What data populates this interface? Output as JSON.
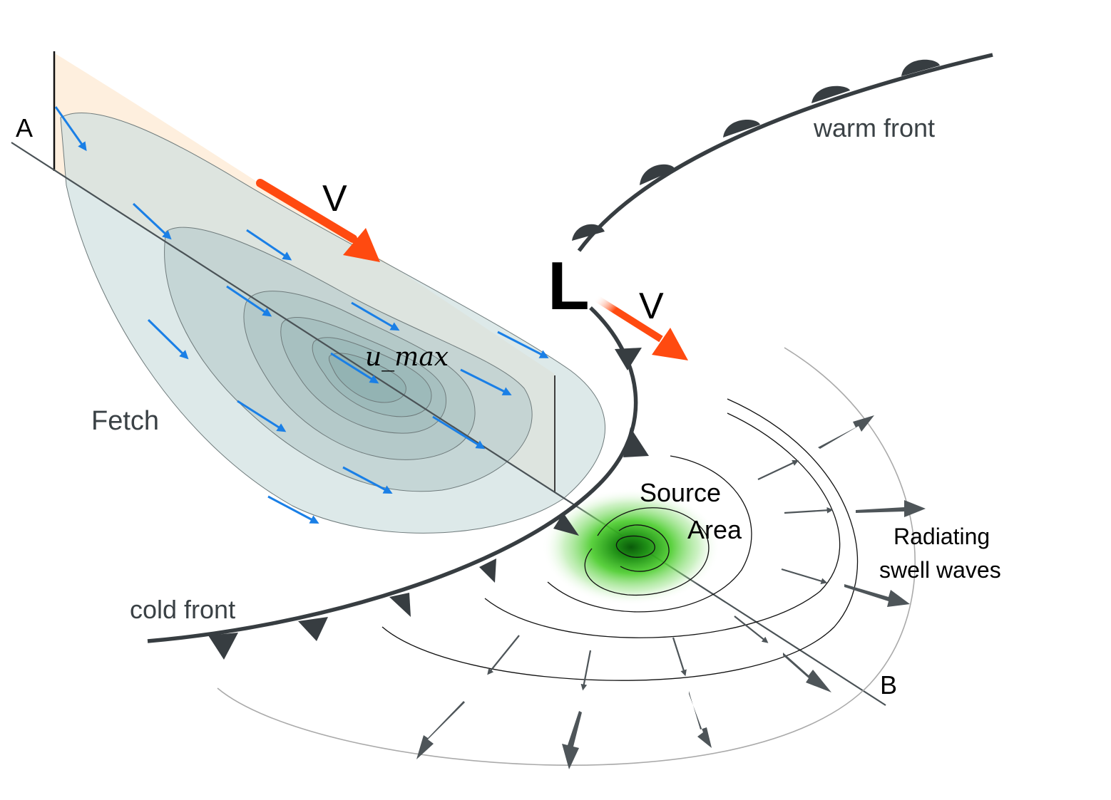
{
  "labels": {
    "point_a": "A",
    "point_b": "B",
    "wind_v_main": "V",
    "wind_v_storm": "V",
    "low_pressure": "L",
    "u_max": "u_max",
    "fetch": "Fetch",
    "warm_front": "warm front",
    "cold_front": "cold front",
    "source_area_line1": "Source",
    "source_area_line2": "Area",
    "radiating_line1": "Radiating",
    "radiating_line2": "swell waves"
  },
  "colors": {
    "wind_arrow": "#1a7fe6",
    "storm_motion_arrow": "#ff4a10",
    "front": "#373d41",
    "swell_arrow": "#4e5559",
    "source_glow": "#36c21a",
    "fetch_fill": "#c9dcdc",
    "profile_fill": "#fde9d3"
  },
  "icons": {
    "wind_arrow": "arrow-right-down-icon",
    "swell_arrow": "arrow-outward-icon",
    "warm_front_symbol": "semicircle-icon",
    "cold_front_symbol": "triangle-icon"
  }
}
